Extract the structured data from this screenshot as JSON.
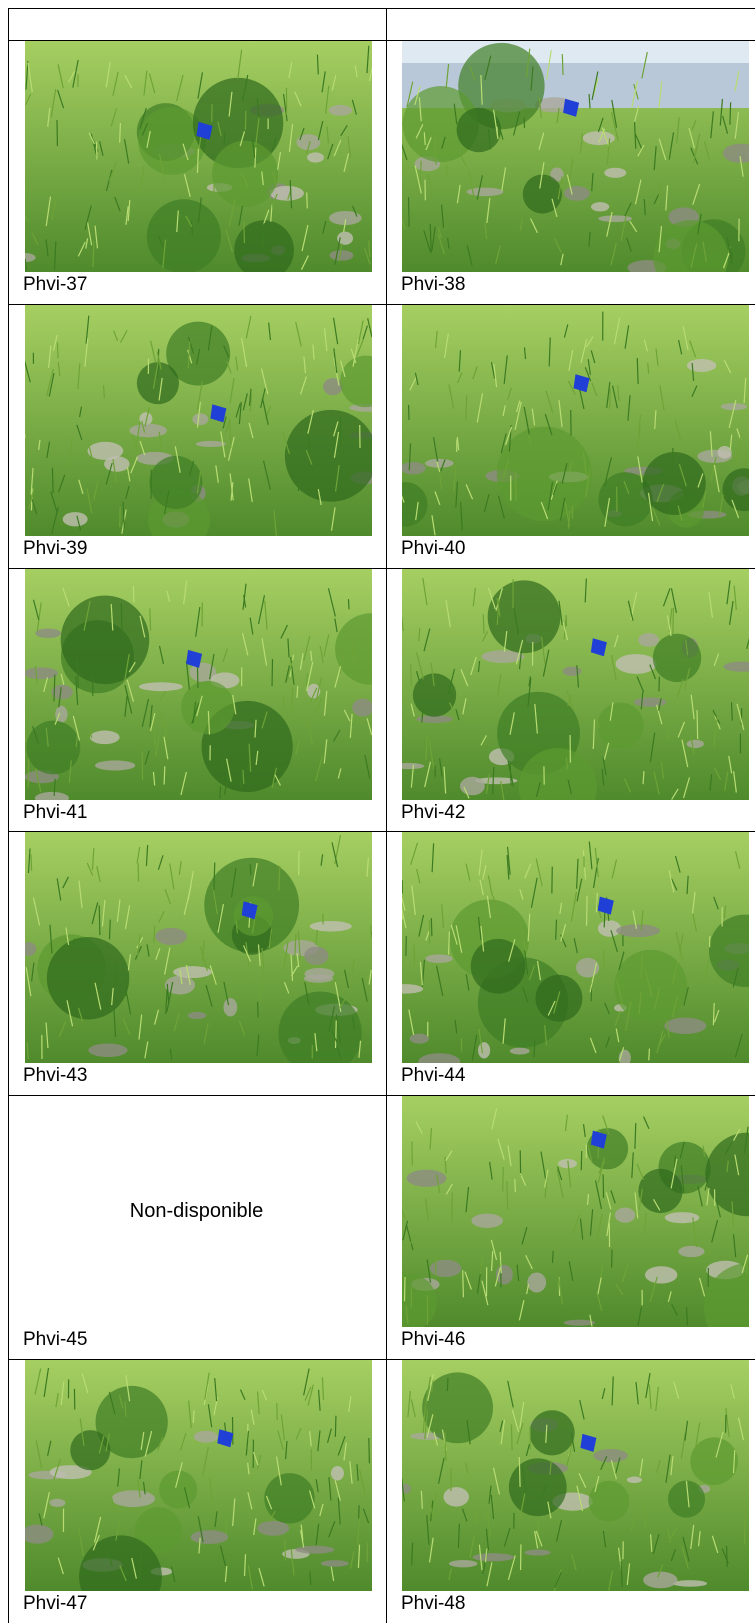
{
  "table": {
    "rows": [
      [
        {
          "caption": "Phvi-37"
        },
        {
          "caption": "Phvi-38"
        }
      ],
      [
        {
          "caption": "Phvi-39"
        },
        {
          "caption": "Phvi-40"
        }
      ],
      [
        {
          "caption": "Phvi-41"
        },
        {
          "caption": "Phvi-42"
        }
      ],
      [
        {
          "caption": "Phvi-43"
        },
        {
          "caption": "Phvi-44"
        }
      ],
      [
        {
          "caption": "Phvi-45",
          "note": "Non-disponible"
        },
        {
          "caption": "Phvi-46"
        }
      ],
      [
        {
          "caption": "Phvi-47"
        },
        {
          "caption": "Phvi-48"
        }
      ]
    ]
  }
}
